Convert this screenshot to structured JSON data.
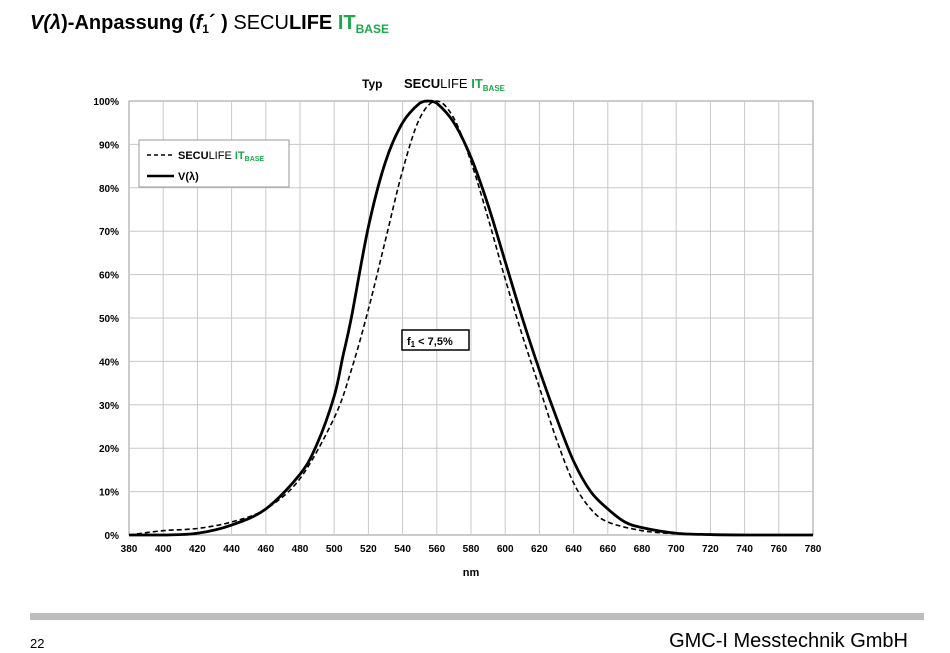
{
  "header": {
    "title_prefix": "V(",
    "title_lambda": "λ",
    "title_mid": ")-Anpassung (",
    "title_f": "f",
    "title_f_sub": "1",
    "title_close": "´ ) ",
    "brand_light": "SECU",
    "brand_bold": "LIFE ",
    "brand_it": "IT",
    "brand_base": "BASE"
  },
  "colors": {
    "brand_green": "#1aa84a",
    "grid": "#c8c8c8",
    "footer_bar": "#bdbdbd"
  },
  "chart_data": {
    "type": "line",
    "typ_label": "Typ",
    "title_brand": [
      "SECU",
      "LIFE ",
      "IT",
      "BASE"
    ],
    "xlabel": "nm",
    "ylabel": "",
    "xlim": [
      380,
      780
    ],
    "ylim": [
      0,
      100
    ],
    "x_ticks": [
      380,
      400,
      420,
      440,
      460,
      480,
      500,
      520,
      540,
      560,
      580,
      600,
      620,
      640,
      660,
      680,
      700,
      720,
      740,
      760,
      780
    ],
    "y_ticks": [
      "0%",
      "10%",
      "20%",
      "30%",
      "40%",
      "50%",
      "60%",
      "70%",
      "80%",
      "90%",
      "100%"
    ],
    "grid": true,
    "legend_position": "top-left",
    "legend": {
      "series1": [
        "SECU",
        "LIFE ",
        "IT",
        "BASE"
      ],
      "series2": "V(λ)"
    },
    "annotation": {
      "f": "f",
      "sub": "1",
      "rest": " < 7,5%"
    },
    "series": [
      {
        "style": "dashed",
        "x": [
          380,
          400,
          420,
          440,
          460,
          480,
          500,
          510,
          520,
          530,
          540,
          550,
          560,
          570,
          580,
          590,
          600,
          610,
          620,
          630,
          640,
          650,
          660,
          680,
          700,
          720,
          740,
          760,
          780
        ],
        "values": [
          0,
          1,
          1.5,
          3,
          6,
          13,
          27,
          38,
          52,
          68,
          84,
          96,
          100,
          96,
          86,
          73,
          59,
          46,
          34,
          22,
          12,
          6,
          3,
          1,
          0.3,
          0,
          0,
          0,
          0
        ]
      },
      {
        "style": "solid",
        "x": [
          380,
          400,
          420,
          440,
          460,
          480,
          490,
          500,
          505,
          510,
          520,
          530,
          540,
          550,
          555,
          560,
          570,
          580,
          590,
          600,
          610,
          620,
          630,
          640,
          650,
          660,
          670,
          680,
          700,
          720,
          740,
          760,
          780
        ],
        "values": [
          0,
          0,
          0.4,
          2.3,
          6,
          14,
          21,
          32,
          41,
          50,
          71,
          86,
          95,
          99.5,
          100,
          99.5,
          95,
          87,
          76,
          63,
          50,
          38,
          27,
          17,
          10,
          6,
          3,
          1.7,
          0.4,
          0.1,
          0,
          0,
          0
        ]
      }
    ]
  },
  "footer": {
    "page_number": "22",
    "company": "GMC-I Messtechnik GmbH"
  }
}
